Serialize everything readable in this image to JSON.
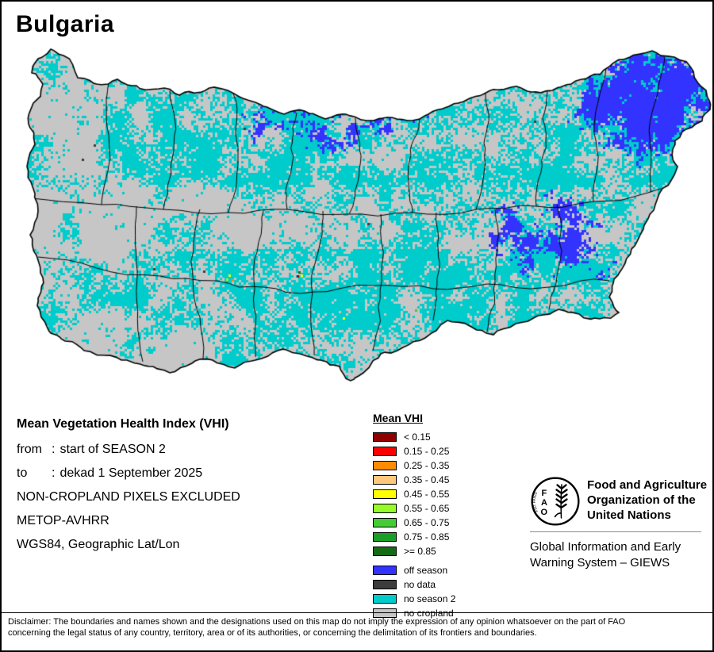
{
  "title": "Bulgaria",
  "info": {
    "heading": "Mean Vegetation Health Index (VHI)",
    "from": {
      "label": "from",
      "sep": ":",
      "value": "start of SEASON 2"
    },
    "to": {
      "label": "to",
      "sep": ":",
      "value": "dekad 1 September 2025"
    },
    "plain_lines": [
      "NON-CROPLAND PIXELS EXCLUDED",
      "METOP-AVHRR",
      "WGS84, Geographic Lat/Lon"
    ]
  },
  "legend": {
    "title": "Mean VHI",
    "classes": [
      {
        "label": "< 0.15",
        "color": "#8F0000"
      },
      {
        "label": "0.15 - 0.25",
        "color": "#FF0000"
      },
      {
        "label": "0.25 - 0.35",
        "color": "#FF8C00"
      },
      {
        "label": "0.35 - 0.45",
        "color": "#FFC87D"
      },
      {
        "label": "0.45 - 0.55",
        "color": "#FFFF00"
      },
      {
        "label": "0.55 - 0.65",
        "color": "#97FB27"
      },
      {
        "label": "0.65 - 0.75",
        "color": "#44CB36"
      },
      {
        "label": "0.75 - 0.85",
        "color": "#1B9E27"
      },
      {
        "label": ">= 0.85",
        "color": "#136B13"
      }
    ],
    "extra": [
      {
        "label": "off season",
        "color": "#3333FF"
      },
      {
        "label": "no data",
        "color": "#3C3C3C"
      },
      {
        "label": "no season 2",
        "color": "#00CCCC"
      },
      {
        "label": "no cropland",
        "color": "#C6C6C6"
      }
    ]
  },
  "footer": {
    "logo_letters": [
      "F",
      "A",
      "O"
    ],
    "logo_motto": "FIAT PANIS",
    "fao_name_lines": [
      "Food and Agriculture",
      "Organization of the",
      "United Nations"
    ],
    "giews_lines": [
      "Global Information and Early",
      "Warning System – GIEWS"
    ]
  },
  "disclaimer_lines": [
    "Disclaimer: The boundaries and names shown and the designations used on this map do not imply the expression of any opinion whatsoever on the part of FAO",
    "concerning the legal status of any country, territory, area or of its authorities, or concerning the delimitation of its frontiers and boundaries."
  ],
  "map": {
    "colors": {
      "background": "#FFFFFF",
      "boundary": "#000000",
      "no_cropland": "#C6C6C6",
      "no_season2": "#00CCCC",
      "off_season": "#3333FF",
      "no_data": "#3C3C3C"
    }
  }
}
